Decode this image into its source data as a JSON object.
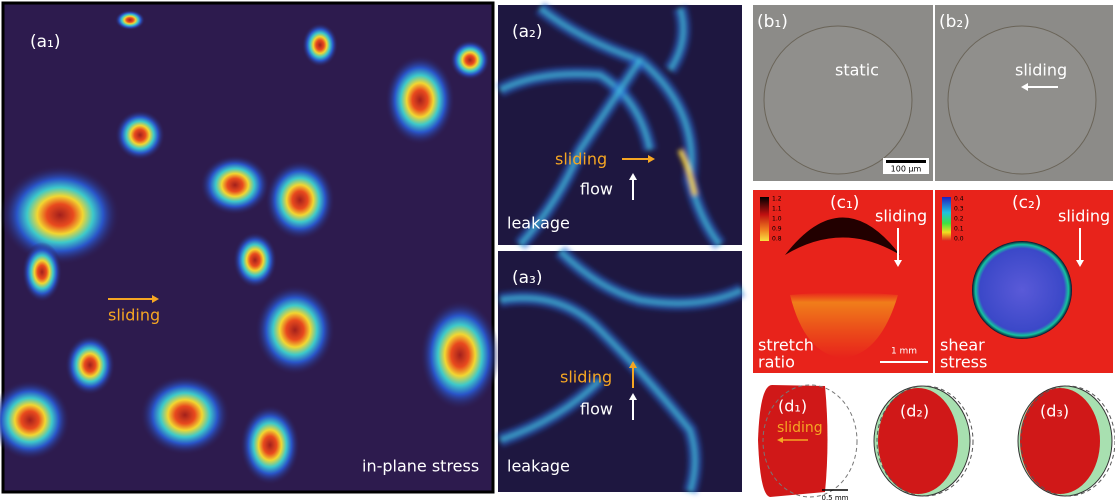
{
  "panels": {
    "a1": {
      "label": "(a₁)",
      "sliding": "sliding",
      "caption": "in-plane stress"
    },
    "a2": {
      "label": "(a₂)",
      "sliding": "sliding",
      "flow": "flow",
      "caption": "leakage"
    },
    "a3": {
      "label": "(a₃)",
      "sliding": "sliding",
      "flow": "flow",
      "caption": "leakage"
    },
    "b1": {
      "label": "(b₁)",
      "state": "static",
      "scale": "100 µm"
    },
    "b2": {
      "label": "(b₂)",
      "state": "sliding"
    },
    "c1": {
      "label": "(c₁)",
      "sliding": "sliding",
      "caption": [
        "stretch",
        "ratio"
      ],
      "scale": "1 mm",
      "colorbar": [
        "1.2",
        "1.1",
        "1.0",
        "0.9",
        "0.8"
      ]
    },
    "c2": {
      "label": "(c₂)",
      "sliding": "sliding",
      "caption": [
        "shear",
        "stress"
      ],
      "colorbar": [
        "0.4",
        "0.3",
        "0.2",
        "0.1",
        "0.0"
      ]
    },
    "d1": {
      "label": "(d₁)",
      "sliding": "sliding",
      "scale": "0.5 mm"
    },
    "d2": {
      "label": "(d₂)"
    },
    "d3": {
      "label": "(d₃)"
    }
  }
}
